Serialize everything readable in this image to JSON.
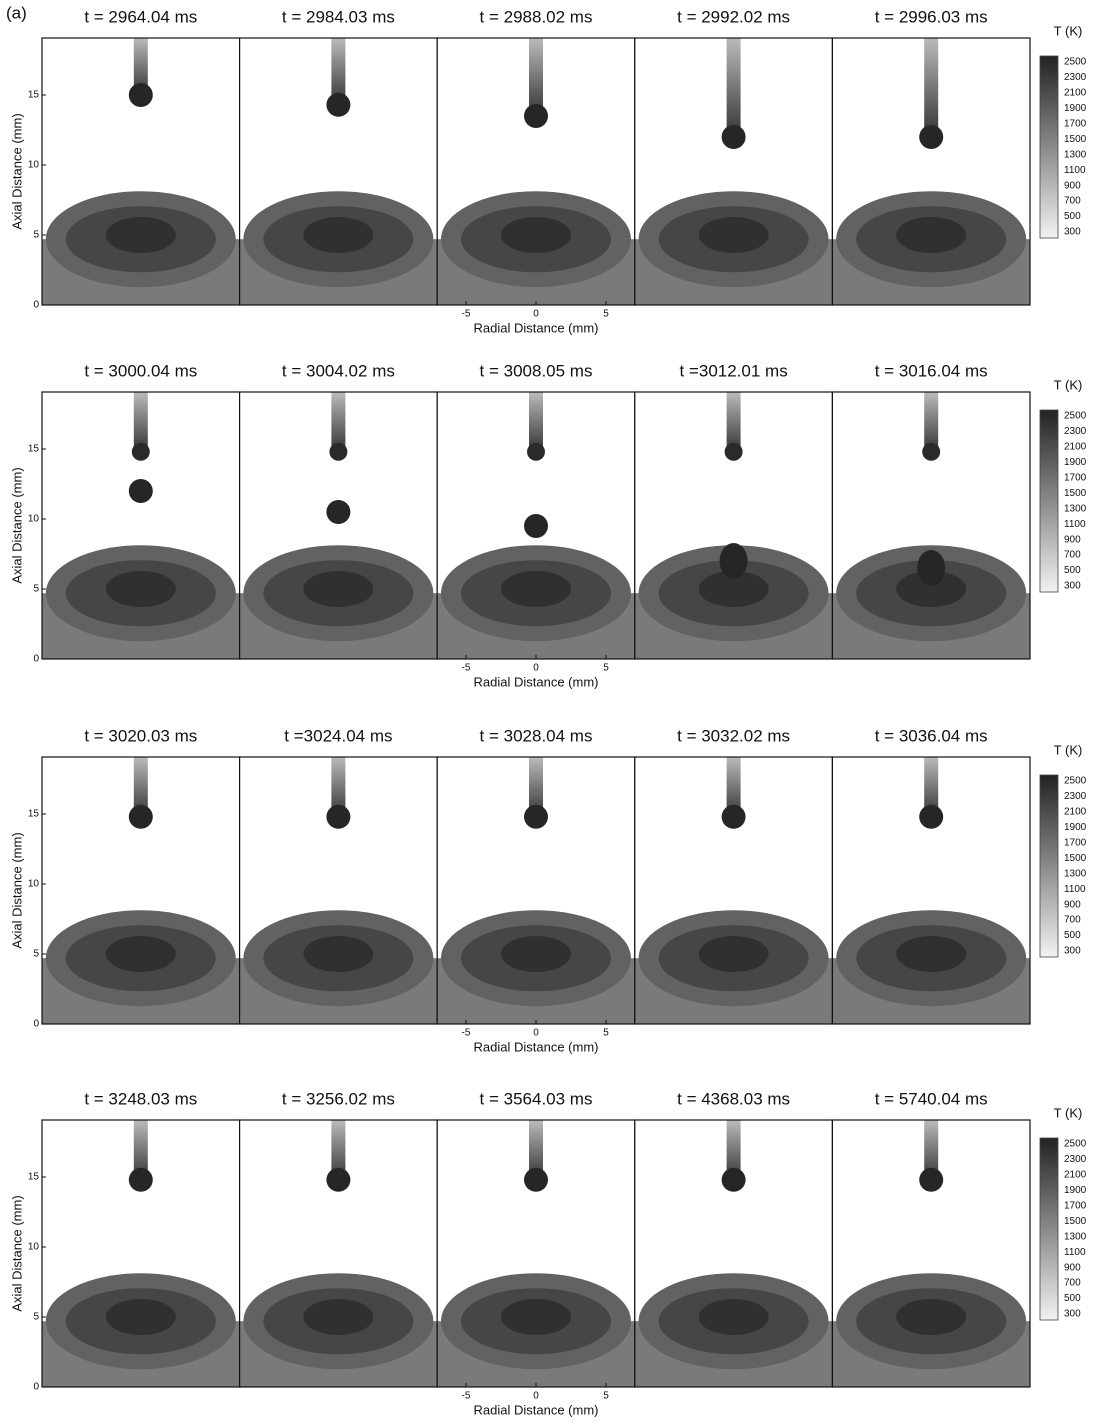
{
  "label": "(a)",
  "rows": [
    {
      "titles": [
        "t = 2964.04 ms",
        "t = 2984.03 ms",
        "t = 2988.02 ms",
        "t = 2992.02 ms",
        "t = 2996.03 ms"
      ],
      "y_label": "Axial Distance (mm)",
      "y_ticks": [
        "0",
        "5",
        "10",
        "15"
      ],
      "x_label": "Radial Distance (mm)",
      "x_ticks": [
        "-5",
        "0",
        "5"
      ],
      "colorbar": {
        "title": "T (K)",
        "labels": [
          "2500",
          "2300",
          "2100",
          "1900",
          "1700",
          "1500",
          "1300",
          "1100",
          "900",
          "700",
          "500",
          "300"
        ]
      }
    },
    {
      "titles": [
        "t = 3000.04 ms",
        "t = 3004.02 ms",
        "t = 3008.05 ms",
        "t =3012.01 ms",
        "t = 3016.04 ms"
      ],
      "y_label": "Axial Distance (mm)",
      "y_ticks": [
        "0",
        "5",
        "10",
        "15"
      ],
      "x_label": "Radial Distance (mm)",
      "x_ticks": [
        "-5",
        "0",
        "5"
      ],
      "colorbar": {
        "title": "T (K)",
        "labels": [
          "2500",
          "2300",
          "2100",
          "1900",
          "1700",
          "1500",
          "1300",
          "1100",
          "900",
          "700",
          "500",
          "300"
        ]
      }
    },
    {
      "titles": [
        "t = 3020.03 ms",
        "t =3024.04 ms",
        "t = 3028.04 ms",
        "t = 3032.02 ms",
        "t = 3036.04 ms"
      ],
      "y_label": "Axial Distance (mm)",
      "y_ticks": [
        "0",
        "5",
        "10",
        "15"
      ],
      "x_label": "Radial Distance (mm)",
      "x_ticks": [
        "-5",
        "0",
        "5"
      ],
      "colorbar": {
        "title": "T (K)",
        "labels": [
          "2500",
          "2300",
          "2100",
          "1900",
          "1700",
          "1500",
          "1300",
          "1100",
          "900",
          "700",
          "500",
          "300"
        ]
      }
    },
    {
      "titles": [
        "t = 3248.03 ms",
        "t = 3256.02 ms",
        "t = 3564.03 ms",
        "t = 4368.03 ms",
        "t = 5740.04 ms"
      ],
      "y_label": "Axial Distance (mm)",
      "y_ticks": [
        "0",
        "5",
        "10",
        "15"
      ],
      "x_label": "Radial Distance (mm)",
      "x_ticks": [
        "-5",
        "0",
        "5"
      ],
      "colorbar": {
        "title": "T (K)",
        "labels": [
          "2500",
          "2300",
          "2100",
          "1900",
          "1700",
          "1500",
          "1300",
          "1100",
          "900",
          "700",
          "500",
          "300"
        ]
      }
    }
  ]
}
